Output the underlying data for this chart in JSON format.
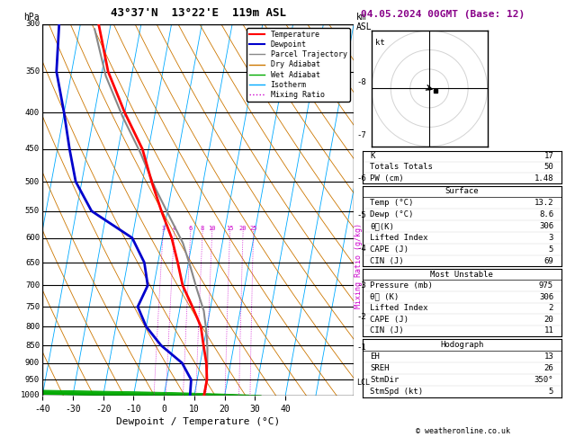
{
  "title_left": "43°37'N  13°22'E  119m ASL",
  "title_date": "04.05.2024 00GMT (Base: 12)",
  "xlabel": "Dewpoint / Temperature (°C)",
  "ylabel_left": "hPa",
  "pressure_levels": [
    300,
    350,
    400,
    450,
    500,
    550,
    600,
    650,
    700,
    750,
    800,
    850,
    900,
    950,
    1000
  ],
  "temp_color": "#ff0000",
  "dewp_color": "#0000cc",
  "parcel_color": "#888888",
  "dry_adiabat_color": "#cc7700",
  "wet_adiabat_color": "#00aa00",
  "isotherm_color": "#00aaff",
  "mixing_ratio_color": "#cc00cc",
  "background_color": "#ffffff",
  "xlim": [
    -40,
    40
  ],
  "skew_factor": 22.5,
  "mixing_ratio_values": [
    3,
    4,
    6,
    8,
    10,
    15,
    20,
    25
  ],
  "km_ticks": [
    1,
    2,
    3,
    4,
    5,
    6,
    7,
    8
  ],
  "km_pressures": [
    855,
    775,
    700,
    622,
    558,
    495,
    430,
    362
  ],
  "lcl_pressure": 958,
  "info_K": 17,
  "info_TT": 50,
  "info_PW": 1.48,
  "surf_temp": 13.2,
  "surf_dewp": 8.6,
  "surf_theta_e": 306,
  "surf_li": 3,
  "surf_cape": 5,
  "surf_cin": 69,
  "mu_pressure": 975,
  "mu_theta_e": 306,
  "mu_li": 2,
  "mu_cape": 20,
  "mu_cin": 11,
  "hodo_eh": 13,
  "hodo_sreh": 26,
  "hodo_stmdir": "350°",
  "hodo_stmspd": 5,
  "font_family": "monospace",
  "temp_profile_T": [
    13.2,
    13.2,
    12.0,
    10.0,
    8.0,
    4.0,
    -0.5,
    -3.5,
    -7.0,
    -12.0,
    -17.0,
    -22.0,
    -30.0,
    -38.0,
    -44.0
  ],
  "temp_profile_P": [
    1000,
    950,
    900,
    850,
    800,
    750,
    700,
    650,
    600,
    550,
    500,
    450,
    400,
    350,
    300
  ],
  "dewp_profile_T": [
    8.6,
    8.0,
    4.0,
    -4.0,
    -10.0,
    -14.0,
    -12.0,
    -14.5,
    -20.0,
    -35.0,
    -42.0,
    -46.0,
    -50.0,
    -55.0,
    -57.0
  ],
  "dewp_profile_P": [
    1000,
    950,
    900,
    850,
    800,
    750,
    700,
    650,
    600,
    550,
    500,
    450,
    400,
    350,
    300
  ],
  "parcel_profile_T": [
    13.2,
    13.2,
    12.5,
    11.5,
    10.0,
    8.0,
    4.5,
    1.0,
    -3.0,
    -9.0,
    -15.5,
    -22.5,
    -30.5,
    -38.5,
    -45.0
  ],
  "parcel_profile_P": [
    1000,
    960,
    910,
    860,
    810,
    760,
    710,
    660,
    610,
    560,
    510,
    455,
    405,
    355,
    305
  ]
}
